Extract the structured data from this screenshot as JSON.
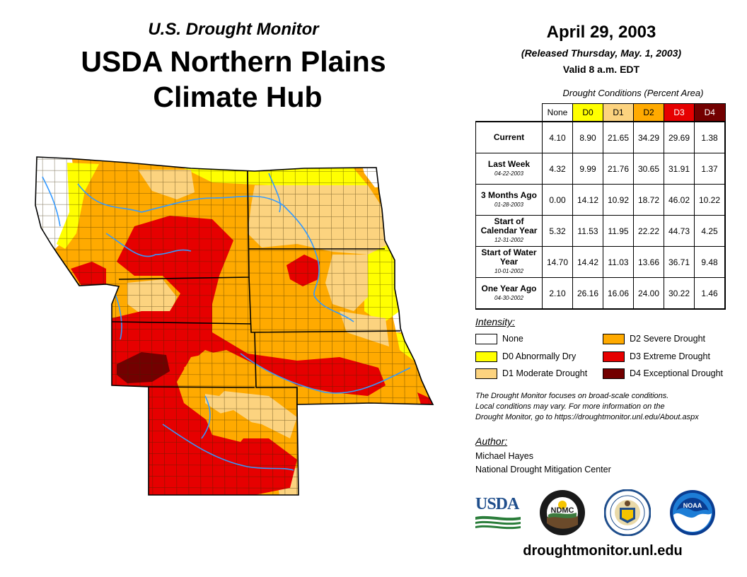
{
  "header": {
    "subtitle": "U.S. Drought Monitor",
    "title_line1": "USDA Northern Plains",
    "title_line2": "Climate Hub"
  },
  "date_block": {
    "date": "April 29, 2003",
    "released": "(Released Thursday, May. 1, 2003)",
    "valid": "Valid 8 a.m. EDT"
  },
  "table": {
    "caption": "Drought Conditions (Percent Area)",
    "columns": [
      "None",
      "D0",
      "D1",
      "D2",
      "D3",
      "D4"
    ],
    "column_colors": [
      "#ffffff",
      "#ffff00",
      "#fcd37f",
      "#ffaa00",
      "#e60000",
      "#730000"
    ],
    "column_text_colors": [
      "#000000",
      "#000000",
      "#000000",
      "#000000",
      "#ffffff",
      "#ffffff"
    ],
    "rows": [
      {
        "label": "Current",
        "date": "",
        "values": [
          "4.10",
          "8.90",
          "21.65",
          "34.29",
          "29.69",
          "1.38"
        ]
      },
      {
        "label": "Last Week",
        "date": "04-22-2003",
        "values": [
          "4.32",
          "9.99",
          "21.76",
          "30.65",
          "31.91",
          "1.37"
        ]
      },
      {
        "label": "3 Months Ago",
        "date": "01-28-2003",
        "values": [
          "0.00",
          "14.12",
          "10.92",
          "18.72",
          "46.02",
          "10.22"
        ]
      },
      {
        "label": "Start of Calendar Year",
        "date": "12-31-2002",
        "values": [
          "5.32",
          "11.53",
          "11.95",
          "22.22",
          "44.73",
          "4.25"
        ]
      },
      {
        "label": "Start of Water Year",
        "date": "10-01-2002",
        "values": [
          "14.70",
          "14.42",
          "11.03",
          "13.66",
          "36.71",
          "9.48"
        ]
      },
      {
        "label": "One Year Ago",
        "date": "04-30-2002",
        "values": [
          "2.10",
          "26.16",
          "16.06",
          "24.00",
          "30.22",
          "1.46"
        ]
      }
    ]
  },
  "legend": {
    "title": "Intensity:",
    "items": [
      {
        "label": "None",
        "color": "#ffffff"
      },
      {
        "label": "D0 Abnormally Dry",
        "color": "#ffff00"
      },
      {
        "label": "D1 Moderate Drought",
        "color": "#fcd37f"
      },
      {
        "label": "D2 Severe Drought",
        "color": "#ffaa00"
      },
      {
        "label": "D3 Extreme Drought",
        "color": "#e60000"
      },
      {
        "label": "D4 Exceptional Drought",
        "color": "#730000"
      }
    ]
  },
  "note": {
    "line1": "The Drought Monitor focuses on broad-scale conditions.",
    "line2": "Local conditions may vary. For more information on the",
    "line3": "Drought Monitor, go to https://droughtmonitor.unl.edu/About.aspx"
  },
  "author": {
    "label": "Author:",
    "name": "Michael Hayes",
    "org": "National Drought Mitigation Center"
  },
  "logos": {
    "usda": "USDA",
    "ndmc": "NDMC",
    "noaa": "NOAA"
  },
  "website": "droughtmonitor.unl.edu"
}
